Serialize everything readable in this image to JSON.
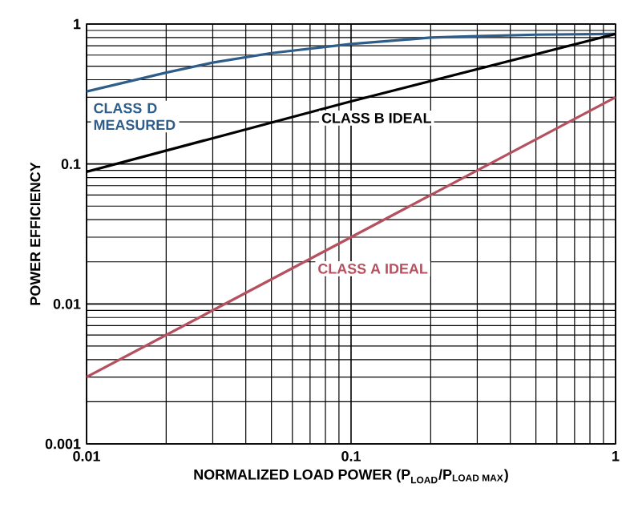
{
  "chart_data": {
    "type": "line",
    "xlabel": "\\text{NORMALIZED LOAD POWER (P}_{\\text{LOAD}}\\text{/P}_{\\text{LOAD MAX}}\\text{)}",
    "ylabel": "POWER EFFICIENCY",
    "log": "xy",
    "xlim": [
      0.01,
      1
    ],
    "ylim": [
      0.001,
      1
    ],
    "xticks": [
      0.01,
      0.1,
      1
    ],
    "yticks": [
      0.001,
      0.01,
      0.1,
      1
    ],
    "grid": true,
    "legend": false,
    "marker": "none",
    "line_style": "solid",
    "series": [
      {
        "name": "CLASS D MEASURED",
        "color": "#2e5d8a",
        "x": [
          0.01,
          0.02,
          0.03,
          0.05,
          0.1,
          0.2,
          0.3,
          0.5,
          1
        ],
        "values": [
          0.33,
          0.45,
          0.53,
          0.62,
          0.72,
          0.8,
          0.82,
          0.84,
          0.85
        ]
      },
      {
        "name": "CLASS B IDEAL",
        "color": "#000000",
        "x": [
          0.01,
          0.1,
          1
        ],
        "values": [
          0.088,
          0.28,
          0.85
        ]
      },
      {
        "name": "CLASS A IDEAL",
        "color": "#b5505f",
        "x": [
          0.01,
          0.1,
          1
        ],
        "values": [
          0.003,
          0.03,
          0.3
        ]
      }
    ]
  }
}
